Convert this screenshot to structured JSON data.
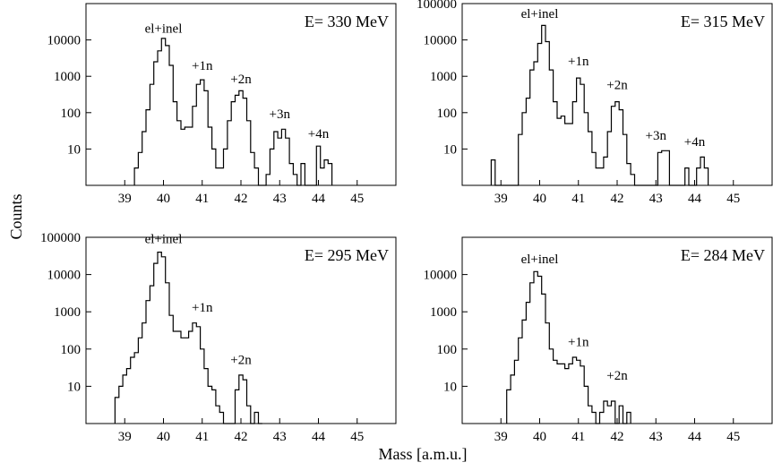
{
  "figure": {
    "ylabel": "Counts",
    "xlabel": "Mass [a.m.u.]"
  },
  "chart_data": [
    {
      "type": "line",
      "subtype": "step-histogram",
      "title": "E= 330 MeV",
      "yscale": "log",
      "xlim": [
        38.0,
        46.0
      ],
      "ylim": [
        1,
        100000
      ],
      "xticks": [
        39,
        40,
        41,
        42,
        43,
        44,
        45
      ],
      "yticks": [
        10,
        100,
        1000,
        10000
      ],
      "ytick_labels": [
        "10",
        "100",
        "1000",
        "10000"
      ],
      "annotations": [
        {
          "text": "el+inel",
          "x": 40.0,
          "y": 16000
        },
        {
          "text": "+1n",
          "x": 41.0,
          "y": 1500
        },
        {
          "text": "+2n",
          "x": 42.0,
          "y": 650
        },
        {
          "text": "+3n",
          "x": 43.0,
          "y": 70
        },
        {
          "text": "+4n",
          "x": 44.0,
          "y": 20
        }
      ],
      "bin_edges": [
        39.25,
        39.35,
        39.45,
        39.55,
        39.65,
        39.75,
        39.85,
        39.95,
        40.05,
        40.15,
        40.25,
        40.35,
        40.45,
        40.55,
        40.65,
        40.75,
        40.85,
        40.95,
        41.05,
        41.15,
        41.25,
        41.35,
        41.45,
        41.55,
        41.65,
        41.75,
        41.85,
        41.95,
        42.05,
        42.15,
        42.25,
        42.35,
        42.45,
        42.55,
        42.65,
        42.75,
        42.85,
        42.95,
        43.05,
        43.15,
        43.25,
        43.35,
        43.45,
        43.55,
        43.65,
        43.75,
        43.85,
        43.95,
        44.05,
        44.15,
        44.25,
        44.35
      ],
      "counts": [
        3,
        8,
        30,
        120,
        600,
        2500,
        5000,
        11000,
        7000,
        2000,
        200,
        60,
        35,
        40,
        40,
        150,
        600,
        800,
        400,
        40,
        10,
        3,
        3,
        10,
        60,
        200,
        300,
        400,
        250,
        60,
        8,
        3,
        1,
        1,
        2,
        10,
        30,
        20,
        35,
        20,
        4,
        2,
        1,
        4,
        1,
        1,
        1,
        12,
        3,
        5,
        4
      ]
    },
    {
      "type": "line",
      "subtype": "step-histogram",
      "title": "E= 315 MeV",
      "yscale": "log",
      "xlim": [
        38.0,
        46.0
      ],
      "ylim": [
        1,
        100000
      ],
      "xticks": [
        39,
        40,
        41,
        42,
        43,
        44,
        45
      ],
      "yticks": [
        10,
        100,
        1000,
        10000,
        100000
      ],
      "ytick_labels": [
        "10",
        "100",
        "1000",
        "10000",
        "100000"
      ],
      "annotations": [
        {
          "text": "el+inel",
          "x": 40.0,
          "y": 40000
        },
        {
          "text": "+1n",
          "x": 41.0,
          "y": 2000
        },
        {
          "text": "+2n",
          "x": 42.0,
          "y": 450
        },
        {
          "text": "+3n",
          "x": 43.0,
          "y": 18
        },
        {
          "text": "+4n",
          "x": 44.0,
          "y": 12
        }
      ],
      "bin_edges": [
        38.75,
        38.85,
        38.95,
        39.05,
        39.15,
        39.25,
        39.35,
        39.45,
        39.55,
        39.65,
        39.75,
        39.85,
        39.95,
        40.05,
        40.15,
        40.25,
        40.35,
        40.45,
        40.55,
        40.65,
        40.75,
        40.85,
        40.95,
        41.05,
        41.15,
        41.25,
        41.35,
        41.45,
        41.55,
        41.65,
        41.75,
        41.85,
        41.95,
        42.05,
        42.15,
        42.25,
        42.35,
        42.45,
        42.55,
        42.65,
        42.75,
        42.85,
        42.95,
        43.05,
        43.15,
        43.25,
        43.35,
        43.45,
        43.55,
        43.65,
        43.75,
        43.85,
        43.95,
        44.05,
        44.15,
        44.25,
        44.35
      ],
      "counts": [
        5,
        1,
        1,
        1,
        1,
        1,
        1,
        25,
        100,
        250,
        1500,
        2500,
        8000,
        25000,
        9000,
        1500,
        200,
        70,
        80,
        50,
        50,
        200,
        900,
        600,
        100,
        30,
        8,
        3,
        3,
        6,
        30,
        150,
        200,
        120,
        25,
        4,
        2,
        1,
        1,
        1,
        1,
        1,
        1,
        8,
        9,
        9,
        1,
        1,
        1,
        1,
        3,
        1,
        1,
        3,
        6,
        3
      ]
    },
    {
      "type": "line",
      "subtype": "step-histogram",
      "title": "E= 295 MeV",
      "yscale": "log",
      "xlim": [
        38.0,
        46.0
      ],
      "ylim": [
        1,
        100000
      ],
      "xticks": [
        39,
        40,
        41,
        42,
        43,
        44,
        45
      ],
      "yticks": [
        10,
        100,
        1000,
        10000,
        100000
      ],
      "ytick_labels": [
        "10",
        "100",
        "1000",
        "10000",
        "100000"
      ],
      "annotations": [
        {
          "text": "el+inel",
          "x": 40.0,
          "y": 70000
        },
        {
          "text": "+1n",
          "x": 41.0,
          "y": 1000
        },
        {
          "text": "+2n",
          "x": 42.0,
          "y": 40
        }
      ],
      "bin_edges": [
        38.75,
        38.85,
        38.95,
        39.05,
        39.15,
        39.25,
        39.35,
        39.45,
        39.55,
        39.65,
        39.75,
        39.85,
        39.95,
        40.05,
        40.15,
        40.25,
        40.35,
        40.45,
        40.55,
        40.65,
        40.75,
        40.85,
        40.95,
        41.05,
        41.15,
        41.25,
        41.35,
        41.45,
        41.55,
        41.65,
        41.75,
        41.85,
        41.95,
        42.05,
        42.15,
        42.25,
        42.35,
        42.45,
        42.55
      ],
      "counts": [
        5,
        10,
        20,
        30,
        60,
        80,
        200,
        500,
        2000,
        5000,
        20000,
        40000,
        30000,
        6000,
        800,
        300,
        300,
        200,
        200,
        300,
        500,
        400,
        100,
        30,
        10,
        8,
        3,
        2,
        1,
        1,
        1,
        8,
        20,
        15,
        3,
        1,
        2,
        1
      ]
    },
    {
      "type": "line",
      "subtype": "step-histogram",
      "title": "E= 284 MeV",
      "yscale": "log",
      "xlim": [
        38.0,
        46.0
      ],
      "ylim": [
        1,
        100000
      ],
      "xticks": [
        39,
        40,
        41,
        42,
        43,
        44,
        45
      ],
      "yticks": [
        10,
        100,
        1000,
        10000
      ],
      "ytick_labels": [
        "10",
        "100",
        "1000",
        "10000"
      ],
      "annotations": [
        {
          "text": "el+inel",
          "x": 40.0,
          "y": 20000
        },
        {
          "text": "+1n",
          "x": 41.0,
          "y": 120
        },
        {
          "text": "+2n",
          "x": 42.0,
          "y": 15
        }
      ],
      "bin_edges": [
        39.15,
        39.25,
        39.35,
        39.45,
        39.55,
        39.65,
        39.75,
        39.85,
        39.95,
        40.05,
        40.15,
        40.25,
        40.35,
        40.45,
        40.55,
        40.65,
        40.75,
        40.85,
        40.95,
        41.05,
        41.15,
        41.25,
        41.35,
        41.45,
        41.55,
        41.65,
        41.75,
        41.85,
        41.95,
        42.05,
        42.15,
        42.25,
        42.35
      ],
      "counts": [
        8,
        20,
        50,
        200,
        600,
        1800,
        6000,
        12000,
        9000,
        3000,
        500,
        100,
        50,
        40,
        40,
        30,
        40,
        60,
        50,
        35,
        10,
        3,
        2,
        1,
        2,
        4,
        3,
        4,
        1,
        3,
        1,
        2
      ]
    }
  ]
}
